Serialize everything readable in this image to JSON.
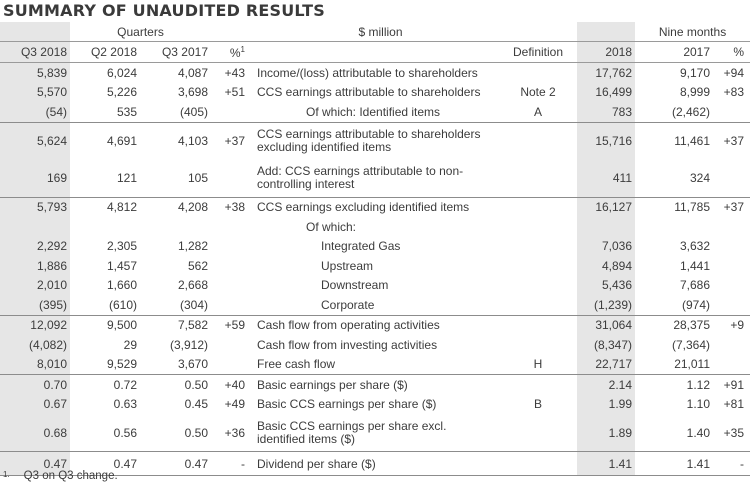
{
  "title": "SUMMARY OF UNAUDITED RESULTS",
  "headers": {
    "quarters": "Quarters",
    "unit": "$ million",
    "nine_months": "Nine months",
    "q3_2018": "Q3 2018",
    "q2_2018": "Q2 2018",
    "q3_2017": "Q3 2017",
    "pct": "%",
    "pct_sup": "1",
    "definition": "Definition",
    "y2018": "2018",
    "y2017": "2017",
    "pct2": "%"
  },
  "rows": [
    {
      "q3_2018": "5,839",
      "q2_2018": "6,024",
      "q3_2017": "4,087",
      "pct": "+43",
      "label": "Income/(loss) attributable to shareholders",
      "def": "",
      "y2018": "17,762",
      "y2017": "9,170",
      "pct2": "+94"
    },
    {
      "q3_2018": "5,570",
      "q2_2018": "5,226",
      "q3_2017": "3,698",
      "pct": "+51",
      "label": "CCS earnings attributable to shareholders",
      "def": "Note 2",
      "y2018": "16,499",
      "y2017": "8,999",
      "pct2": "+83"
    },
    {
      "q3_2018": "(54)",
      "q2_2018": "535",
      "q3_2017": "(405)",
      "pct": "",
      "label": "Of which: Identified items",
      "def": "A",
      "y2018": "783",
      "y2017": "(2,462)",
      "pct2": ""
    },
    {
      "q3_2018": "5,624",
      "q2_2018": "4,691",
      "q3_2017": "4,103",
      "pct": "+37",
      "label": "CCS earnings attributable to shareholders excluding identified items",
      "def": "",
      "y2018": "15,716",
      "y2017": "11,461",
      "pct2": "+37"
    },
    {
      "q3_2018": "169",
      "q2_2018": "121",
      "q3_2017": "105",
      "pct": "",
      "label": "Add: CCS earnings attributable to non-controlling interest",
      "def": "",
      "y2018": "411",
      "y2017": "324",
      "pct2": ""
    },
    {
      "q3_2018": "5,793",
      "q2_2018": "4,812",
      "q3_2017": "4,208",
      "pct": "+38",
      "label": "CCS earnings excluding identified items",
      "def": "",
      "y2018": "16,127",
      "y2017": "11,785",
      "pct2": "+37"
    },
    {
      "label": "Of which:"
    },
    {
      "q3_2018": "2,292",
      "q2_2018": "2,305",
      "q3_2017": "1,282",
      "pct": "",
      "label": "Integrated Gas",
      "def": "",
      "y2018": "7,036",
      "y2017": "3,632",
      "pct2": ""
    },
    {
      "q3_2018": "1,886",
      "q2_2018": "1,457",
      "q3_2017": "562",
      "pct": "",
      "label": "Upstream",
      "def": "",
      "y2018": "4,894",
      "y2017": "1,441",
      "pct2": ""
    },
    {
      "q3_2018": "2,010",
      "q2_2018": "1,660",
      "q3_2017": "2,668",
      "pct": "",
      "label": "Downstream",
      "def": "",
      "y2018": "5,436",
      "y2017": "7,686",
      "pct2": ""
    },
    {
      "q3_2018": "(395)",
      "q2_2018": "(610)",
      "q3_2017": "(304)",
      "pct": "",
      "label": "Corporate",
      "def": "",
      "y2018": "(1,239)",
      "y2017": "(974)",
      "pct2": ""
    },
    {
      "q3_2018": "12,092",
      "q2_2018": "9,500",
      "q3_2017": "7,582",
      "pct": "+59",
      "label": "Cash flow from operating activities",
      "def": "",
      "y2018": "31,064",
      "y2017": "28,375",
      "pct2": "+9"
    },
    {
      "q3_2018": "(4,082)",
      "q2_2018": "29",
      "q3_2017": "(3,912)",
      "pct": "",
      "label": "Cash flow from investing activities",
      "def": "",
      "y2018": "(8,347)",
      "y2017": "(7,364)",
      "pct2": ""
    },
    {
      "q3_2018": "8,010",
      "q2_2018": "9,529",
      "q3_2017": "3,670",
      "pct": "",
      "label": "Free cash flow",
      "def": "H",
      "y2018": "22,717",
      "y2017": "21,011",
      "pct2": ""
    },
    {
      "q3_2018": "0.70",
      "q2_2018": "0.72",
      "q3_2017": "0.50",
      "pct": "+40",
      "label": "Basic earnings per share ($)",
      "def": "",
      "y2018": "2.14",
      "y2017": "1.12",
      "pct2": "+91"
    },
    {
      "q3_2018": "0.67",
      "q2_2018": "0.63",
      "q3_2017": "0.45",
      "pct": "+49",
      "label": "Basic CCS earnings per share ($)",
      "def": "B",
      "y2018": "1.99",
      "y2017": "1.10",
      "pct2": "+81"
    },
    {
      "q3_2018": "0.68",
      "q2_2018": "0.56",
      "q3_2017": "0.50",
      "pct": "+36",
      "label": "Basic CCS earnings per share excl. identified items ($)",
      "def": "",
      "y2018": "1.89",
      "y2017": "1.40",
      "pct2": "+35"
    },
    {
      "q3_2018": "0.47",
      "q2_2018": "0.47",
      "q3_2017": "0.47",
      "pct": "-",
      "label": "Dividend per share ($)",
      "def": "",
      "y2018": "1.41",
      "y2017": "1.41",
      "pct2": "-"
    }
  ],
  "footnote": {
    "mark": "1.",
    "text": "Q3 on Q3 change."
  }
}
